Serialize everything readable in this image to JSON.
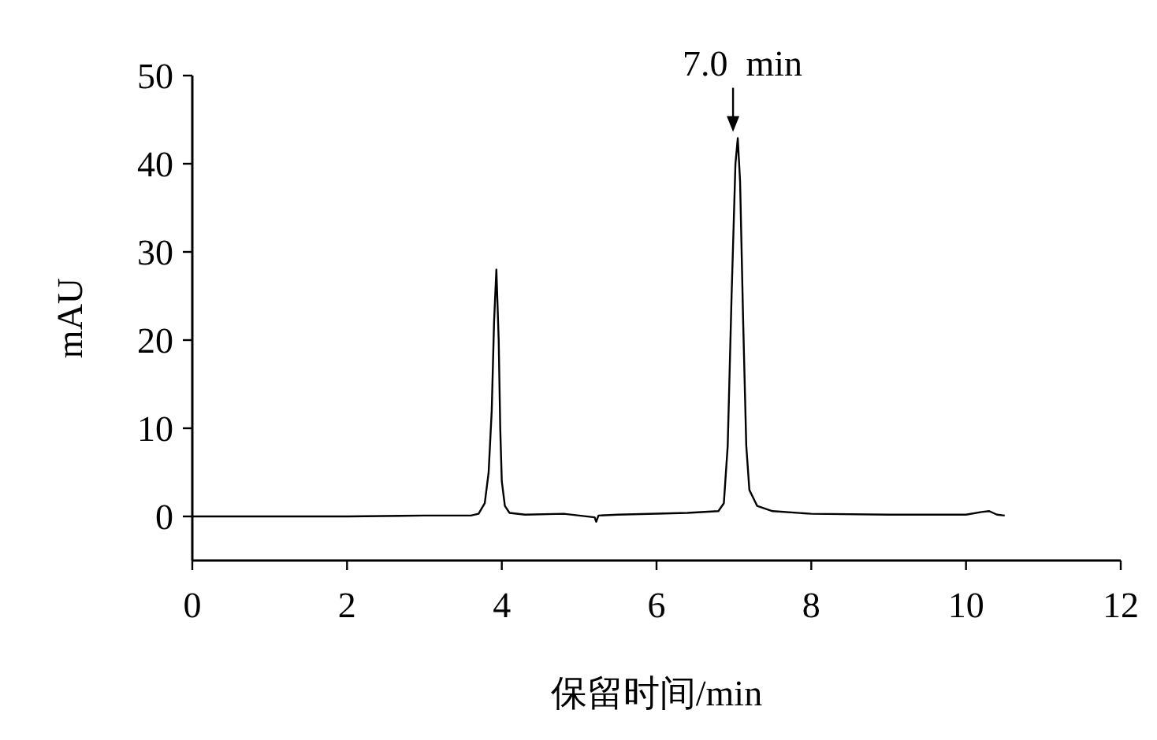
{
  "chart_data": {
    "type": "line",
    "xlabel": "保留时间/min",
    "ylabel": "mAU",
    "annotations": [
      {
        "text": "7.0  min",
        "x": 7.05,
        "y": 42.9
      }
    ],
    "x": [
      0,
      1,
      2,
      3,
      3.6,
      3.7,
      3.78,
      3.83,
      3.87,
      3.9,
      3.93,
      3.96,
      3.98,
      4.0,
      4.04,
      4.1,
      4.3,
      4.8,
      5.2,
      5.22,
      5.25,
      5.5,
      6.4,
      6.8,
      6.87,
      6.92,
      6.97,
      7.02,
      7.05,
      7.08,
      7.12,
      7.16,
      7.2,
      7.3,
      7.5,
      8,
      9,
      10,
      10.2,
      10.3,
      10.4,
      10.5
    ],
    "values": [
      0,
      0,
      0,
      0.1,
      0.1,
      0.3,
      1.5,
      5,
      12,
      22,
      28,
      20,
      10,
      4,
      1.2,
      0.4,
      0.2,
      0.3,
      -0.1,
      -0.6,
      0.1,
      0.2,
      0.4,
      0.6,
      1.5,
      8,
      25,
      40,
      42.9,
      38,
      22,
      8,
      3,
      1.2,
      0.6,
      0.3,
      0.2,
      0.2,
      0.5,
      0.6,
      0.2,
      0.1
    ],
    "color": "#000000",
    "xlim": [
      0,
      12
    ],
    "ylim": [
      -5,
      50
    ],
    "xticks": [
      0,
      2,
      4,
      6,
      8,
      10,
      12
    ],
    "yticks": [
      0,
      10,
      20,
      30,
      40,
      50
    ],
    "grid": false,
    "marker": "none",
    "line_style": "solid"
  }
}
